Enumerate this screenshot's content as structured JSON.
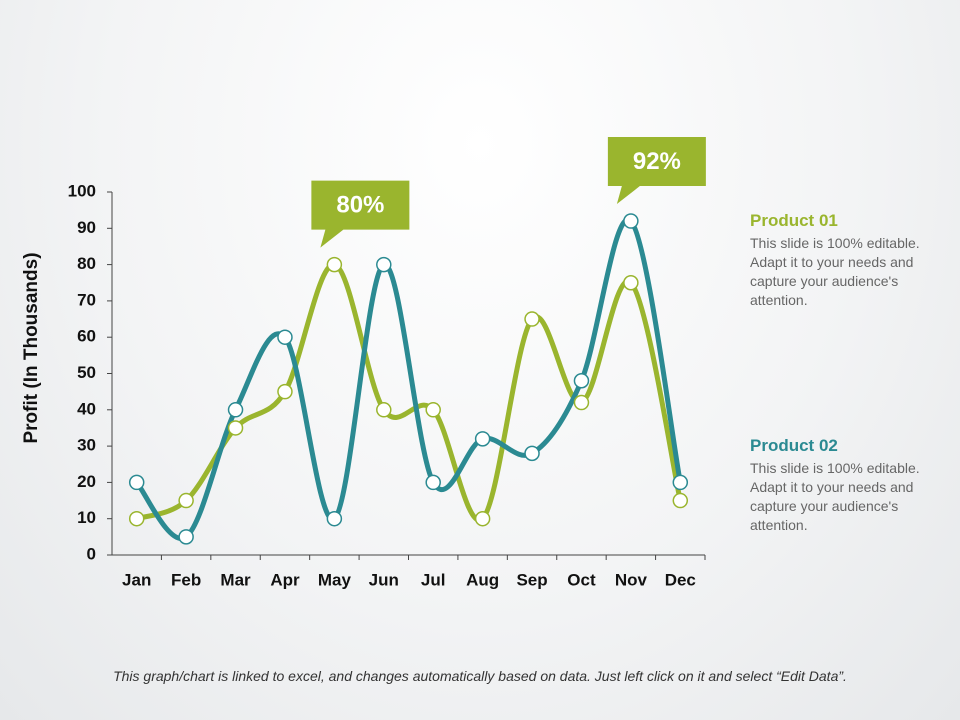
{
  "chart_data": {
    "type": "line",
    "y_label": "Profit (In Thousands)",
    "categories": [
      "Jan",
      "Feb",
      "Mar",
      "Apr",
      "May",
      "Jun",
      "Jul",
      "Aug",
      "Sep",
      "Oct",
      "Nov",
      "Dec"
    ],
    "series": [
      {
        "name": "Product 01",
        "color": "#9ab52e",
        "description": "This slide is 100% editable. Adapt it to your needs and capture your audience's attention.",
        "values": [
          10,
          15,
          35,
          45,
          80,
          40,
          40,
          10,
          65,
          42,
          75,
          15
        ]
      },
      {
        "name": "Product 02",
        "color": "#2b8a92",
        "description": "This slide is 100% editable. Adapt it to your needs and capture your audience's attention.",
        "values": [
          20,
          5,
          40,
          60,
          10,
          80,
          20,
          32,
          28,
          48,
          92,
          20
        ]
      }
    ],
    "ylim": [
      0,
      100
    ],
    "yticks": [
      0,
      10,
      20,
      30,
      40,
      50,
      60,
      70,
      80,
      90,
      100
    ],
    "grid": false,
    "annotations": [
      {
        "text": "80%",
        "category": "May"
      },
      {
        "text": "92%",
        "category": "Nov"
      }
    ],
    "annotation_color": "#9ab52e",
    "footnote": "This graph/chart is linked to excel, and changes automatically based on data. Just left click on it and select “Edit Data”."
  }
}
